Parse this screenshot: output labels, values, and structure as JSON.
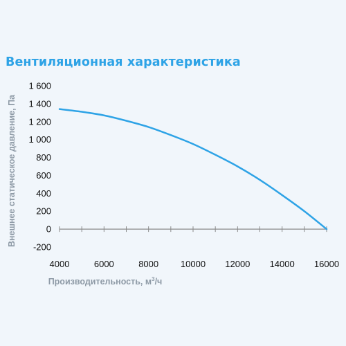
{
  "chart_data": {
    "type": "line",
    "title": "Вентиляционная характеристика",
    "xlabel": "Производительность, м³/ч",
    "xlabel_base": "Производительность, м",
    "xlabel_sup": "3",
    "xlabel_tail": "/ч",
    "ylabel": "Внешнее статическое давление, Па",
    "xlim": [
      4000,
      16000
    ],
    "ylim": [
      -200,
      1600
    ],
    "xticks": [
      4000,
      6000,
      8000,
      10000,
      12000,
      14000,
      16000
    ],
    "xtick_labels": [
      "4000",
      "6000",
      "8000",
      "10000",
      "12000",
      "14000",
      "16000"
    ],
    "yticks": [
      -200,
      0,
      200,
      400,
      600,
      800,
      1000,
      1200,
      1400,
      1600
    ],
    "ytick_labels": [
      "-200",
      "0",
      "200",
      "400",
      "600",
      "800",
      "1 000",
      "1 200",
      "1 400",
      "1 600"
    ],
    "grid": false,
    "line_color": "#2ea3e6",
    "series": [
      {
        "x": [
          4000,
          5000,
          6000,
          7000,
          8000,
          9000,
          10000,
          11000,
          12000,
          13000,
          14000,
          15000,
          16000
        ],
        "values": [
          1340,
          1310,
          1270,
          1210,
          1140,
          1050,
          950,
          830,
          700,
          550,
          380,
          200,
          0
        ]
      }
    ]
  }
}
